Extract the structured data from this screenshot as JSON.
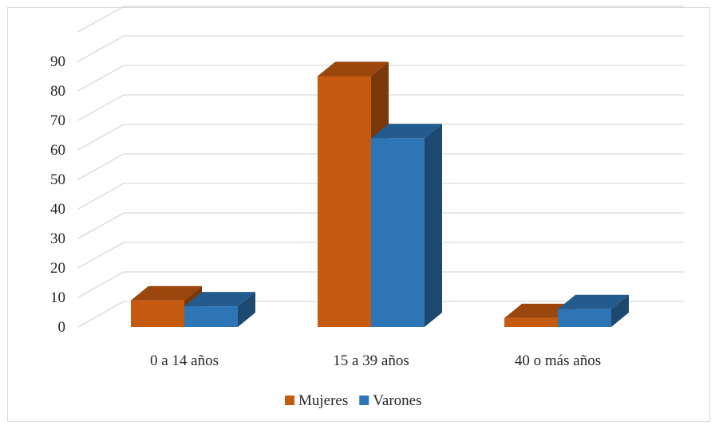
{
  "chart_data": {
    "type": "bar",
    "style": "3d-clustered-column",
    "title": "",
    "xlabel": "",
    "ylabel": "",
    "categories": [
      "0 a 14 años",
      "15 a 39 años",
      "40 o más años"
    ],
    "series": [
      {
        "name": "Mujeres",
        "values": [
          9,
          85,
          3
        ],
        "color": "#c55a11"
      },
      {
        "name": "Varones",
        "values": [
          7,
          64,
          6
        ],
        "color": "#2e75b6"
      }
    ],
    "yticks": [
      "0",
      "10",
      "20",
      "30",
      "40",
      "50",
      "60",
      "70",
      "80",
      "90"
    ],
    "ylim": [
      0,
      100
    ],
    "grid": true,
    "legend": "bottom"
  }
}
